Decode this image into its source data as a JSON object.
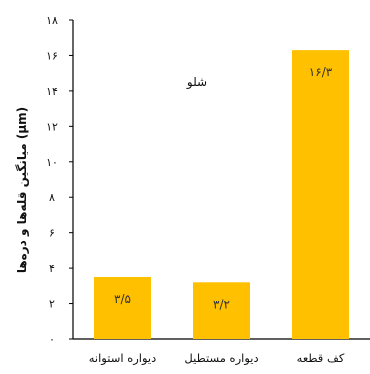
{
  "chart_data": {
    "type": "bar",
    "categories": [
      "کف قطعه",
      "دیواره مستطیل",
      "دیواره استوانه"
    ],
    "values": [
      16.3,
      3.2,
      3.5
    ],
    "value_labels": [
      "۱۶/۳",
      "۳/۲",
      "۳/۵"
    ],
    "ylabel": "میانگین قله‌ها و دره‌ها (µm)",
    "annotation": "شلو",
    "ylim": [
      0,
      18
    ],
    "yticks": [
      0,
      2,
      4,
      6,
      8,
      10,
      12,
      14,
      16,
      18
    ],
    "ytick_labels": [
      "۰",
      "۲",
      "۴",
      "۶",
      "۸",
      "۱۰",
      "۱۲",
      "۱۴",
      "۱۶",
      "۱۸"
    ],
    "grid": false,
    "bar_color": "#ffc000",
    "axis_color": "#000000"
  }
}
